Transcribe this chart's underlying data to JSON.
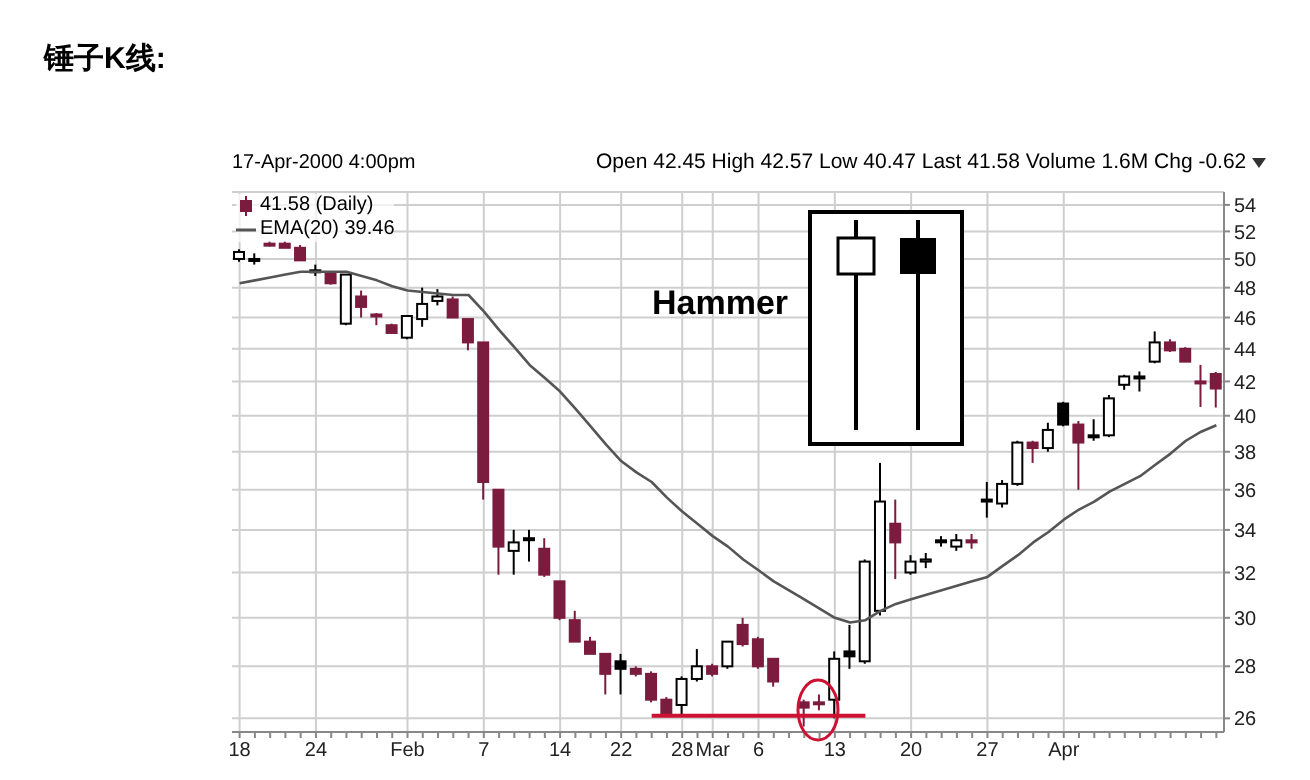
{
  "chart_data": {
    "type": "candlestick",
    "title": "锤子K线:",
    "subtitle": "17-Apr-2000 4:00pm",
    "annotations": [
      "Open 42.45 High 42.57 Low 40.47 Last 41.58 Volume 1.6M Chg -0.62",
      "Hammer"
    ],
    "categories": [
      "18",
      null,
      null,
      null,
      null,
      "24",
      null,
      null,
      null,
      null,
      null,
      "Feb",
      null,
      null,
      null,
      null,
      "7",
      null,
      null,
      null,
      null,
      "14",
      null,
      null,
      null,
      "22",
      null,
      null,
      null,
      "28",
      null,
      "Mar",
      null,
      null,
      "6",
      null,
      null,
      null,
      null,
      "13",
      null,
      null,
      null,
      null,
      "20",
      null,
      null,
      null,
      null,
      "27",
      null,
      null,
      null,
      null,
      "Apr",
      null,
      null,
      null,
      null,
      null,
      null,
      null,
      null,
      null,
      null
    ],
    "series": [
      {
        "type": "candlestick",
        "name": "41.58 (Daily)",
        "ohlc": [
          [
            50.0,
            50.7,
            49.8,
            50.5
          ],
          [
            50.0,
            50.4,
            49.6,
            50.0
          ],
          [
            51.0,
            51.3,
            50.9,
            51.1
          ],
          [
            51.1,
            51.3,
            50.8,
            50.8
          ],
          [
            50.8,
            51.0,
            49.9,
            49.9
          ],
          [
            49.2,
            49.6,
            48.8,
            49.2
          ],
          [
            49.0,
            49.1,
            48.2,
            48.3
          ],
          [
            45.6,
            48.9,
            45.5,
            48.9
          ],
          [
            47.4,
            47.8,
            46.0,
            46.7
          ],
          [
            46.2,
            46.3,
            45.5,
            46.2
          ],
          [
            45.5,
            45.6,
            45.0,
            45.0
          ],
          [
            44.7,
            46.1,
            44.6,
            46.1
          ],
          [
            45.9,
            48.0,
            45.4,
            46.9
          ],
          [
            47.1,
            47.9,
            46.8,
            47.4
          ],
          [
            47.2,
            47.4,
            46.0,
            46.0
          ],
          [
            45.9,
            45.9,
            43.9,
            44.4
          ],
          [
            44.4,
            44.4,
            35.5,
            36.4
          ],
          [
            36.0,
            36.0,
            31.9,
            33.2
          ],
          [
            33.0,
            34.0,
            31.9,
            33.4
          ],
          [
            33.6,
            34.0,
            32.5,
            33.6
          ],
          [
            33.1,
            33.6,
            31.8,
            31.9
          ],
          [
            31.6,
            31.6,
            29.9,
            30.0
          ],
          [
            29.9,
            30.3,
            29.0,
            29.0
          ],
          [
            29.0,
            29.2,
            28.5,
            28.5
          ],
          [
            28.5,
            28.5,
            26.9,
            27.7
          ],
          [
            28.2,
            28.5,
            26.9,
            27.9
          ],
          [
            27.9,
            28.0,
            27.6,
            27.7
          ],
          [
            27.7,
            27.8,
            26.6,
            26.7
          ],
          [
            26.7,
            26.8,
            26.2,
            26.2
          ],
          [
            26.5,
            27.6,
            26.1,
            27.5
          ],
          [
            27.5,
            28.7,
            27.4,
            28.0
          ],
          [
            28.0,
            28.1,
            27.6,
            27.7
          ],
          [
            28.0,
            29.0,
            27.9,
            29.0
          ],
          [
            29.7,
            30.0,
            28.8,
            28.9
          ],
          [
            29.1,
            29.2,
            27.9,
            28.0
          ],
          [
            28.3,
            28.3,
            27.2,
            27.4
          ],
          null,
          [
            26.6,
            26.7,
            25.7,
            26.4
          ],
          [
            26.6,
            26.9,
            26.3,
            26.6
          ],
          [
            26.7,
            28.6,
            26.0,
            28.3
          ],
          [
            28.6,
            29.7,
            27.9,
            28.4
          ],
          [
            28.2,
            32.6,
            28.1,
            32.5
          ],
          [
            30.3,
            37.4,
            30.1,
            35.4
          ],
          [
            34.3,
            35.5,
            31.7,
            33.4
          ],
          [
            32.0,
            32.8,
            31.9,
            32.5
          ],
          [
            32.5,
            32.9,
            32.2,
            32.6
          ],
          [
            33.5,
            33.7,
            33.2,
            33.5
          ],
          [
            33.2,
            33.8,
            33.0,
            33.5
          ],
          [
            33.5,
            33.8,
            33.1,
            33.4
          ],
          [
            35.5,
            36.4,
            34.6,
            35.5
          ],
          [
            35.3,
            36.5,
            35.1,
            36.3
          ],
          [
            36.3,
            38.6,
            36.2,
            38.5
          ],
          [
            38.5,
            38.6,
            37.4,
            38.2
          ],
          [
            38.2,
            39.6,
            38.0,
            39.2
          ],
          [
            40.7,
            40.8,
            39.4,
            39.5
          ],
          [
            39.5,
            39.7,
            36.0,
            38.5
          ],
          [
            38.9,
            39.8,
            38.6,
            38.9
          ],
          [
            38.9,
            41.2,
            38.8,
            41.0
          ],
          [
            41.8,
            42.4,
            41.5,
            42.3
          ],
          [
            42.3,
            42.6,
            41.4,
            42.3
          ],
          [
            43.2,
            45.1,
            43.1,
            44.4
          ],
          [
            44.4,
            44.6,
            43.8,
            43.9
          ],
          [
            44.0,
            44.1,
            43.2,
            43.2
          ],
          [
            42.0,
            43.0,
            40.5,
            42.0
          ],
          [
            42.45,
            42.57,
            40.47,
            41.58
          ]
        ],
        "colors": [
          "#000000",
          "#000000",
          "#7b1c3e",
          "#7b1c3e",
          "#7b1c3e",
          "#000000",
          "#7b1c3e",
          "#000000",
          "#7b1c3e",
          "#7b1c3e",
          "#7b1c3e",
          "#000000",
          "#000000",
          "#000000",
          "#7b1c3e",
          "#7b1c3e",
          "#7b1c3e",
          "#7b1c3e",
          "#000000",
          "#000000",
          "#7b1c3e",
          "#7b1c3e",
          "#7b1c3e",
          "#7b1c3e",
          "#7b1c3e",
          "#000000",
          "#7b1c3e",
          "#7b1c3e",
          "#7b1c3e",
          "#000000",
          "#000000",
          "#7b1c3e",
          "#000000",
          "#7b1c3e",
          "#7b1c3e",
          "#7b1c3e",
          null,
          "#7b1c3e",
          "#7b1c3e",
          "#000000",
          "#000000",
          "#000000",
          "#000000",
          "#7b1c3e",
          "#000000",
          "#000000",
          "#000000",
          "#000000",
          "#7b1c3e",
          "#000000",
          "#000000",
          "#000000",
          "#7b1c3e",
          "#000000",
          "#000000",
          "#7b1c3e",
          "#000000",
          "#000000",
          "#000000",
          "#000000",
          "#000000",
          "#7b1c3e",
          "#7b1c3e",
          "#7b1c3e",
          "#7b1c3e"
        ]
      },
      {
        "type": "line",
        "name": "EMA(20) 39.46",
        "color": "#555555",
        "values": [
          48.3,
          48.5,
          48.7,
          48.9,
          49.1,
          49.1,
          49.1,
          49.1,
          48.8,
          48.5,
          48.1,
          47.8,
          47.7,
          47.6,
          47.5,
          47.5,
          46.4,
          45.2,
          44.1,
          43.0,
          42.2,
          41.4,
          40.4,
          39.4,
          38.4,
          37.5,
          36.9,
          36.4,
          35.6,
          34.9,
          34.3,
          33.7,
          33.2,
          32.6,
          32.1,
          31.6,
          31.2,
          30.8,
          30.4,
          30.0,
          29.8,
          29.9,
          30.3,
          30.6,
          30.8,
          31.0,
          31.2,
          31.4,
          31.6,
          31.8,
          32.3,
          32.8,
          33.4,
          33.9,
          34.5,
          35.0,
          35.4,
          35.9,
          36.3,
          36.7,
          37.3,
          37.9,
          38.6,
          39.1,
          39.46
        ]
      },
      {
        "type": "line",
        "color": "#cc1133",
        "values": [
          null,
          null,
          null,
          null,
          null,
          null,
          null,
          null,
          null,
          null,
          null,
          null,
          null,
          null,
          null,
          null,
          null,
          null,
          null,
          null,
          null,
          null,
          null,
          null,
          null,
          null,
          null,
          26.1,
          26.1,
          26.1,
          26.1,
          26.1,
          26.1,
          26.1,
          26.1,
          26.1,
          26.1,
          26.1,
          26.1,
          26.1,
          26.1,
          26.1,
          null,
          null,
          null,
          null,
          null,
          null,
          null,
          null,
          null,
          null,
          null,
          null,
          null,
          null,
          null,
          null,
          null,
          null,
          null,
          null,
          null,
          null,
          null
        ]
      }
    ],
    "ylim": [
      25.5,
      55
    ],
    "yticks": [
      26,
      28,
      30,
      32,
      34,
      36,
      38,
      40,
      42,
      44,
      46,
      48,
      50,
      52,
      54
    ],
    "log": "y",
    "grid": true,
    "legend": "top left",
    "marker": "none",
    "line_style": "solid"
  }
}
